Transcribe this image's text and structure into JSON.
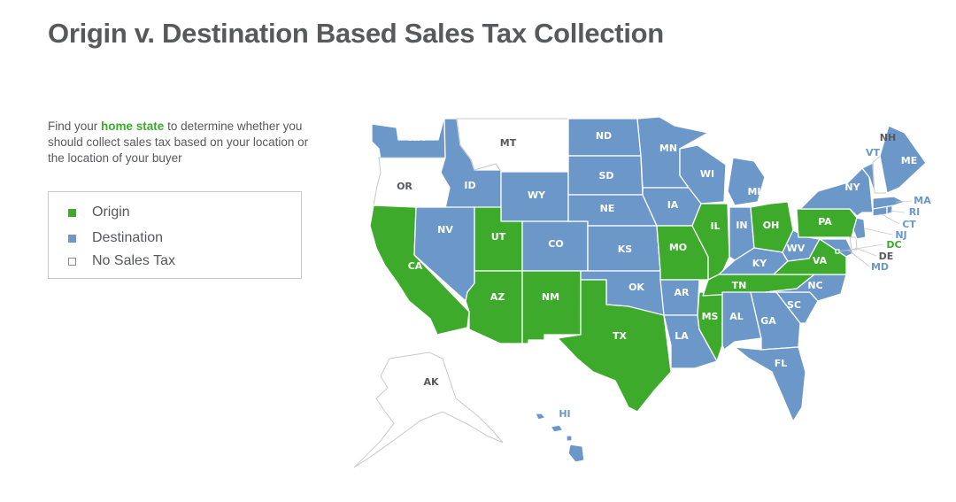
{
  "title": "Origin v. Destination Based Sales Tax Collection",
  "intro": {
    "before": "Find your ",
    "highlight": "home state",
    "after": " to determine whether you should collect sales tax based on your location or the location of your buyer"
  },
  "colors": {
    "origin": "#3daa2b",
    "destination": "#6b98c9",
    "no_tax": "#ffffff",
    "label_light": "#ffffff",
    "label_dark": "#58595b"
  },
  "legend": [
    {
      "key": "origin",
      "label": "Origin"
    },
    {
      "key": "destination",
      "label": "Destination"
    },
    {
      "key": "no_tax",
      "label": "No Sales Tax"
    }
  ],
  "states": {
    "AL": "destination",
    "AK": "no_tax",
    "AZ": "origin",
    "AR": "destination",
    "CA": "origin",
    "CO": "destination",
    "CT": "destination",
    "DE": "no_tax",
    "DC": "origin",
    "FL": "destination",
    "GA": "destination",
    "HI": "destination",
    "ID": "destination",
    "IL": "origin",
    "IN": "destination",
    "IA": "destination",
    "KS": "destination",
    "KY": "destination",
    "LA": "destination",
    "ME": "destination",
    "MD": "destination",
    "MA": "destination",
    "MI": "destination",
    "MN": "destination",
    "MS": "origin",
    "MO": "origin",
    "MT": "no_tax",
    "NE": "destination",
    "NV": "destination",
    "NH": "no_tax",
    "NJ": "destination",
    "NM": "origin",
    "NY": "destination",
    "NC": "destination",
    "ND": "destination",
    "OH": "origin",
    "OK": "destination",
    "OR": "no_tax",
    "PA": "origin",
    "RI": "destination",
    "SC": "destination",
    "SD": "destination",
    "TN": "origin",
    "TX": "origin",
    "UT": "origin",
    "VT": "destination",
    "VA": "origin",
    "WA": "destination",
    "WV": "destination",
    "WI": "destination",
    "WY": "destination"
  }
}
